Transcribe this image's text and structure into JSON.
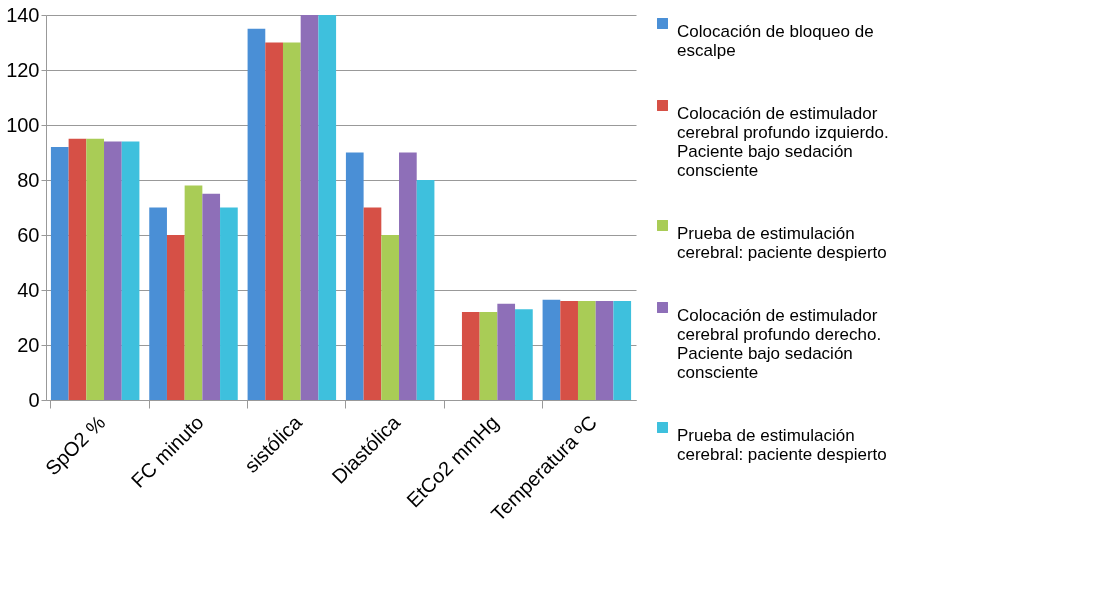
{
  "chart_data": {
    "type": "bar",
    "categories": [
      "SpO2 %",
      "FC minuto",
      "sistólica",
      "Diastólica",
      "EtCo2 mmHg",
      "Temperatura ºC"
    ],
    "series": [
      {
        "name": "Colocación de bloqueo de escalpe",
        "color": "#4a8fd6",
        "values": [
          92,
          70,
          135,
          90,
          null,
          36.5
        ]
      },
      {
        "name": "Colocación de estimulador cerebral profundo izquierdo. Paciente bajo sedación consciente",
        "color": "#d65046",
        "values": [
          95,
          60,
          130,
          70,
          32,
          36
        ]
      },
      {
        "name": "Prueba de estimulación cerebral: paciente despierto",
        "color": "#a9cc56",
        "values": [
          95,
          78,
          130,
          60,
          32,
          36
        ]
      },
      {
        "name": "Colocación de estimulador cerebral profundo derecho. Paciente bajo sedación consciente",
        "color": "#8e6fb8",
        "values": [
          94,
          75,
          140,
          90,
          35,
          36
        ]
      },
      {
        "name": "Prueba de estimulación cerebral: paciente despierto",
        "color": "#3ec0dd",
        "values": [
          94,
          70,
          140,
          80,
          33,
          36
        ]
      }
    ],
    "ylim": [
      0,
      140
    ],
    "yticks": [
      0,
      20,
      40,
      60,
      80,
      100,
      120,
      140
    ],
    "grid": "y",
    "legend": "right"
  }
}
